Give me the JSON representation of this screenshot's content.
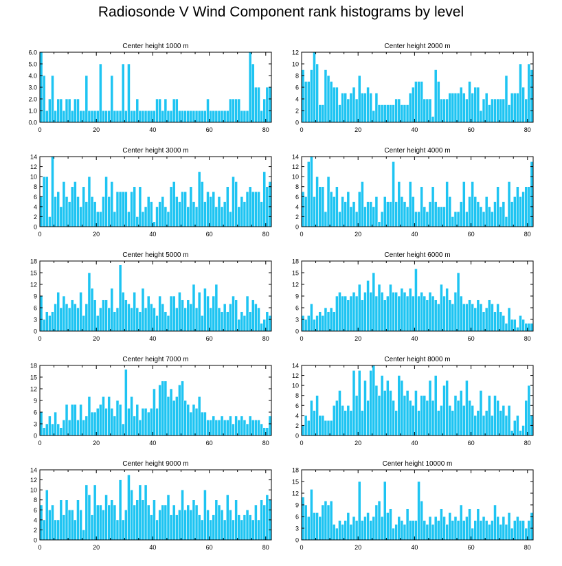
{
  "title": "Radiosonde V Wind Component rank histograms by level",
  "colors": {
    "bar": "#1ec4f2",
    "bar_edge": "#ffffff",
    "axis": "#000000"
  },
  "chart_data": [
    {
      "type": "bar",
      "title": "Center height 1000 m",
      "xlim": [
        0,
        82
      ],
      "xticks": [
        "0",
        "20",
        "40",
        "60",
        "80"
      ],
      "ylim": [
        0,
        6
      ],
      "yticks": [
        "0.0",
        "1.0",
        "2.0",
        "3.0",
        "4.0",
        "5.0",
        "6.0"
      ],
      "values": [
        6,
        4,
        1,
        2,
        4,
        1,
        2,
        2,
        1,
        2,
        2,
        1,
        2,
        2,
        1,
        1,
        4,
        1,
        1,
        1,
        1,
        5,
        1,
        1,
        1,
        4,
        1,
        1,
        1,
        5,
        1,
        5,
        1,
        1,
        2,
        1,
        1,
        1,
        1,
        1,
        1,
        2,
        2,
        1,
        2,
        1,
        1,
        2,
        2,
        1,
        1,
        1,
        1,
        1,
        1,
        1,
        1,
        1,
        1,
        2,
        1,
        1,
        1,
        1,
        1,
        1,
        1,
        2,
        2,
        2,
        2,
        1,
        1,
        1,
        6,
        5,
        3,
        3,
        1,
        2,
        3,
        3
      ]
    },
    {
      "type": "bar",
      "title": "Center height 2000 m",
      "xlim": [
        0,
        82
      ],
      "xticks": [
        "0",
        "20",
        "40",
        "60",
        "80"
      ],
      "ylim": [
        0,
        12
      ],
      "yticks": [
        "0",
        "2",
        "4",
        "6",
        "8",
        "10",
        "12"
      ],
      "values": [
        9,
        7,
        7,
        9,
        12,
        10,
        3,
        3,
        9,
        8,
        7,
        6,
        6,
        3,
        5,
        5,
        4,
        5,
        6,
        4,
        8,
        5,
        5,
        6,
        5,
        2,
        5,
        3,
        3,
        3,
        3,
        3,
        3,
        4,
        4,
        3,
        3,
        3,
        5,
        6,
        7,
        7,
        7,
        4,
        4,
        4,
        1,
        9,
        7,
        4,
        4,
        4,
        5,
        5,
        5,
        5,
        6,
        5,
        4,
        7,
        5,
        6,
        6,
        2,
        4,
        5,
        3,
        4,
        4,
        4,
        4,
        4,
        8,
        3,
        5,
        5,
        5,
        10,
        6,
        4,
        10,
        9
      ]
    },
    {
      "type": "bar",
      "title": "Center height 3000 m",
      "xlim": [
        0,
        82
      ],
      "xticks": [
        "0",
        "20",
        "40",
        "60",
        "80"
      ],
      "ylim": [
        0,
        14
      ],
      "yticks": [
        "0",
        "2",
        "4",
        "6",
        "8",
        "10",
        "12",
        "14"
      ],
      "values": [
        6,
        10,
        10,
        2,
        14,
        6,
        7,
        4,
        9,
        6,
        5,
        8,
        9,
        6,
        4,
        8,
        5,
        10,
        6,
        5,
        3,
        3,
        6,
        10,
        6,
        9,
        3,
        7,
        7,
        7,
        7,
        3,
        7,
        8,
        2,
        8,
        3,
        4,
        6,
        5,
        1,
        4,
        5,
        6,
        4,
        3,
        8,
        9,
        6,
        5,
        7,
        7,
        4,
        8,
        5,
        4,
        11,
        9,
        5,
        7,
        6,
        7,
        4,
        6,
        4,
        5,
        8,
        3,
        10,
        9,
        4,
        6,
        5,
        7,
        8,
        7,
        7,
        7,
        5,
        11,
        8,
        9
      ]
    },
    {
      "type": "bar",
      "title": "Center height 4000 m",
      "xlim": [
        0,
        82
      ],
      "xticks": [
        "0",
        "20",
        "40",
        "60",
        "80"
      ],
      "ylim": [
        0,
        14
      ],
      "yticks": [
        "0",
        "2",
        "4",
        "6",
        "8",
        "10",
        "12",
        "14"
      ],
      "values": [
        7,
        6,
        13,
        14,
        6,
        10,
        8,
        8,
        3,
        10,
        7,
        6,
        8,
        3,
        6,
        5,
        7,
        4,
        5,
        3,
        7,
        9,
        4,
        5,
        5,
        4,
        6,
        1,
        3,
        6,
        5,
        5,
        13,
        5,
        9,
        6,
        5,
        4,
        9,
        6,
        3,
        3,
        8,
        4,
        3,
        5,
        8,
        5,
        4,
        4,
        4,
        9,
        6,
        2,
        3,
        3,
        5,
        9,
        3,
        6,
        9,
        6,
        5,
        4,
        3,
        6,
        4,
        3,
        5,
        8,
        4,
        5,
        2,
        9,
        5,
        6,
        8,
        6,
        7,
        8,
        8,
        13
      ]
    },
    {
      "type": "bar",
      "title": "Center height 5000 m",
      "xlim": [
        0,
        82
      ],
      "xticks": [
        "0",
        "20",
        "40",
        "60",
        "80"
      ],
      "ylim": [
        0,
        18
      ],
      "yticks": [
        "0",
        "3",
        "6",
        "9",
        "12",
        "15",
        "18"
      ],
      "values": [
        9,
        3,
        5,
        4,
        5,
        7,
        10,
        6,
        9,
        7,
        6,
        8,
        7,
        6,
        10,
        4,
        7,
        15,
        11,
        8,
        4,
        6,
        8,
        8,
        6,
        11,
        5,
        6,
        17,
        10,
        8,
        7,
        6,
        10,
        6,
        5,
        11,
        6,
        9,
        7,
        6,
        4,
        9,
        7,
        5,
        4,
        9,
        9,
        6,
        10,
        8,
        6,
        8,
        7,
        12,
        6,
        10,
        4,
        11,
        9,
        6,
        9,
        12,
        6,
        5,
        7,
        5,
        7,
        9,
        8,
        3,
        5,
        4,
        9,
        5,
        8,
        7,
        6,
        2,
        3,
        5,
        4
      ]
    },
    {
      "type": "bar",
      "title": "Center height 6000 m",
      "xlim": [
        0,
        82
      ],
      "xticks": [
        "0",
        "20",
        "40",
        "60",
        "80"
      ],
      "ylim": [
        0,
        18
      ],
      "yticks": [
        "0",
        "3",
        "6",
        "9",
        "12",
        "15",
        "18"
      ],
      "values": [
        4,
        3,
        4,
        7,
        3,
        4,
        5,
        4,
        6,
        5,
        6,
        5,
        9,
        10,
        9,
        9,
        8,
        9,
        10,
        9,
        12,
        8,
        10,
        13,
        10,
        15,
        9,
        12,
        10,
        8,
        9,
        12,
        10,
        10,
        9,
        11,
        10,
        9,
        11,
        9,
        16,
        9,
        10,
        9,
        8,
        10,
        9,
        8,
        7,
        12,
        9,
        11,
        8,
        7,
        10,
        15,
        9,
        7,
        7,
        8,
        7,
        6,
        8,
        7,
        5,
        6,
        8,
        7,
        5,
        7,
        5,
        4,
        2,
        6,
        3,
        3,
        1,
        4,
        3,
        2,
        2,
        2
      ]
    },
    {
      "type": "bar",
      "title": "Center height 7000 m",
      "xlim": [
        0,
        82
      ],
      "xticks": [
        "0",
        "20",
        "40",
        "60",
        "80"
      ],
      "ylim": [
        0,
        18
      ],
      "yticks": [
        "0",
        "3",
        "6",
        "9",
        "12",
        "15",
        "18"
      ],
      "values": [
        6,
        2,
        3,
        5,
        3,
        6,
        3,
        2,
        4,
        8,
        4,
        8,
        8,
        4,
        8,
        4,
        5,
        10,
        6,
        6,
        7,
        8,
        10,
        7,
        10,
        7,
        5,
        9,
        8,
        3,
        17,
        7,
        10,
        5,
        8,
        4,
        7,
        7,
        6,
        7,
        12,
        7,
        13,
        14,
        14,
        10,
        12,
        9,
        10,
        13,
        14,
        9,
        8,
        6,
        8,
        7,
        10,
        6,
        6,
        4,
        4,
        5,
        4,
        4,
        5,
        4,
        4,
        5,
        3,
        5,
        4,
        5,
        4,
        3,
        5,
        4,
        4,
        4,
        3,
        2,
        2,
        5
      ]
    },
    {
      "type": "bar",
      "title": "Center height 8000 m",
      "xlim": [
        0,
        82
      ],
      "xticks": [
        "0",
        "20",
        "40",
        "60",
        "80"
      ],
      "ylim": [
        0,
        14
      ],
      "yticks": [
        "0",
        "2",
        "4",
        "6",
        "8",
        "10",
        "12",
        "14"
      ],
      "values": [
        2,
        4,
        3,
        7,
        5,
        8,
        4,
        4,
        3,
        3,
        3,
        6,
        7,
        9,
        6,
        5,
        6,
        5,
        13,
        8,
        13,
        5,
        11,
        7,
        13,
        14,
        10,
        8,
        12,
        9,
        11,
        9,
        7,
        5,
        12,
        11,
        8,
        9,
        7,
        6,
        9,
        5,
        8,
        8,
        7,
        11,
        7,
        12,
        5,
        6,
        10,
        11,
        6,
        5,
        8,
        7,
        9,
        6,
        11,
        7,
        6,
        4,
        5,
        9,
        4,
        5,
        8,
        4,
        8,
        7,
        5,
        6,
        4,
        6,
        1,
        3,
        4,
        1,
        2,
        7,
        10,
        4
      ]
    },
    {
      "type": "bar",
      "title": "Center height 9000 m",
      "xlim": [
        0,
        82
      ],
      "xticks": [
        "0",
        "20",
        "40",
        "60",
        "80"
      ],
      "ylim": [
        0,
        14
      ],
      "yticks": [
        "0",
        "2",
        "4",
        "6",
        "8",
        "10",
        "12",
        "14"
      ],
      "values": [
        7,
        4,
        10,
        6,
        7,
        4,
        4,
        8,
        5,
        8,
        6,
        6,
        4,
        8,
        6,
        2,
        11,
        9,
        5,
        11,
        7,
        7,
        6,
        9,
        7,
        8,
        7,
        4,
        12,
        4,
        6,
        13,
        10,
        7,
        8,
        11,
        8,
        11,
        7,
        5,
        8,
        4,
        6,
        7,
        7,
        9,
        5,
        7,
        5,
        6,
        10,
        6,
        7,
        6,
        8,
        7,
        5,
        4,
        10,
        6,
        4,
        5,
        8,
        7,
        6,
        4,
        9,
        6,
        4,
        8,
        5,
        4,
        5,
        6,
        5,
        4,
        7,
        4,
        8,
        7,
        9,
        8
      ]
    },
    {
      "type": "bar",
      "title": "Center height 10000 m",
      "xlim": [
        0,
        82
      ],
      "xticks": [
        "0",
        "20",
        "40",
        "60",
        "80"
      ],
      "ylim": [
        0,
        18
      ],
      "yticks": [
        "0",
        "3",
        "6",
        "9",
        "12",
        "15",
        "18"
      ],
      "values": [
        11,
        9,
        6,
        13,
        7,
        7,
        6,
        9,
        10,
        9,
        10,
        4,
        3,
        5,
        4,
        5,
        7,
        4,
        6,
        5,
        15,
        5,
        6,
        7,
        5,
        6,
        9,
        10,
        6,
        15,
        7,
        8,
        3,
        4,
        6,
        5,
        4,
        8,
        5,
        5,
        5,
        15,
        10,
        5,
        4,
        6,
        4,
        6,
        5,
        8,
        6,
        4,
        7,
        5,
        6,
        5,
        9,
        5,
        6,
        8,
        3,
        5,
        8,
        5,
        6,
        5,
        4,
        5,
        9,
        6,
        4,
        6,
        4,
        7,
        3,
        5,
        6,
        5,
        5,
        3,
        5,
        7
      ]
    }
  ]
}
